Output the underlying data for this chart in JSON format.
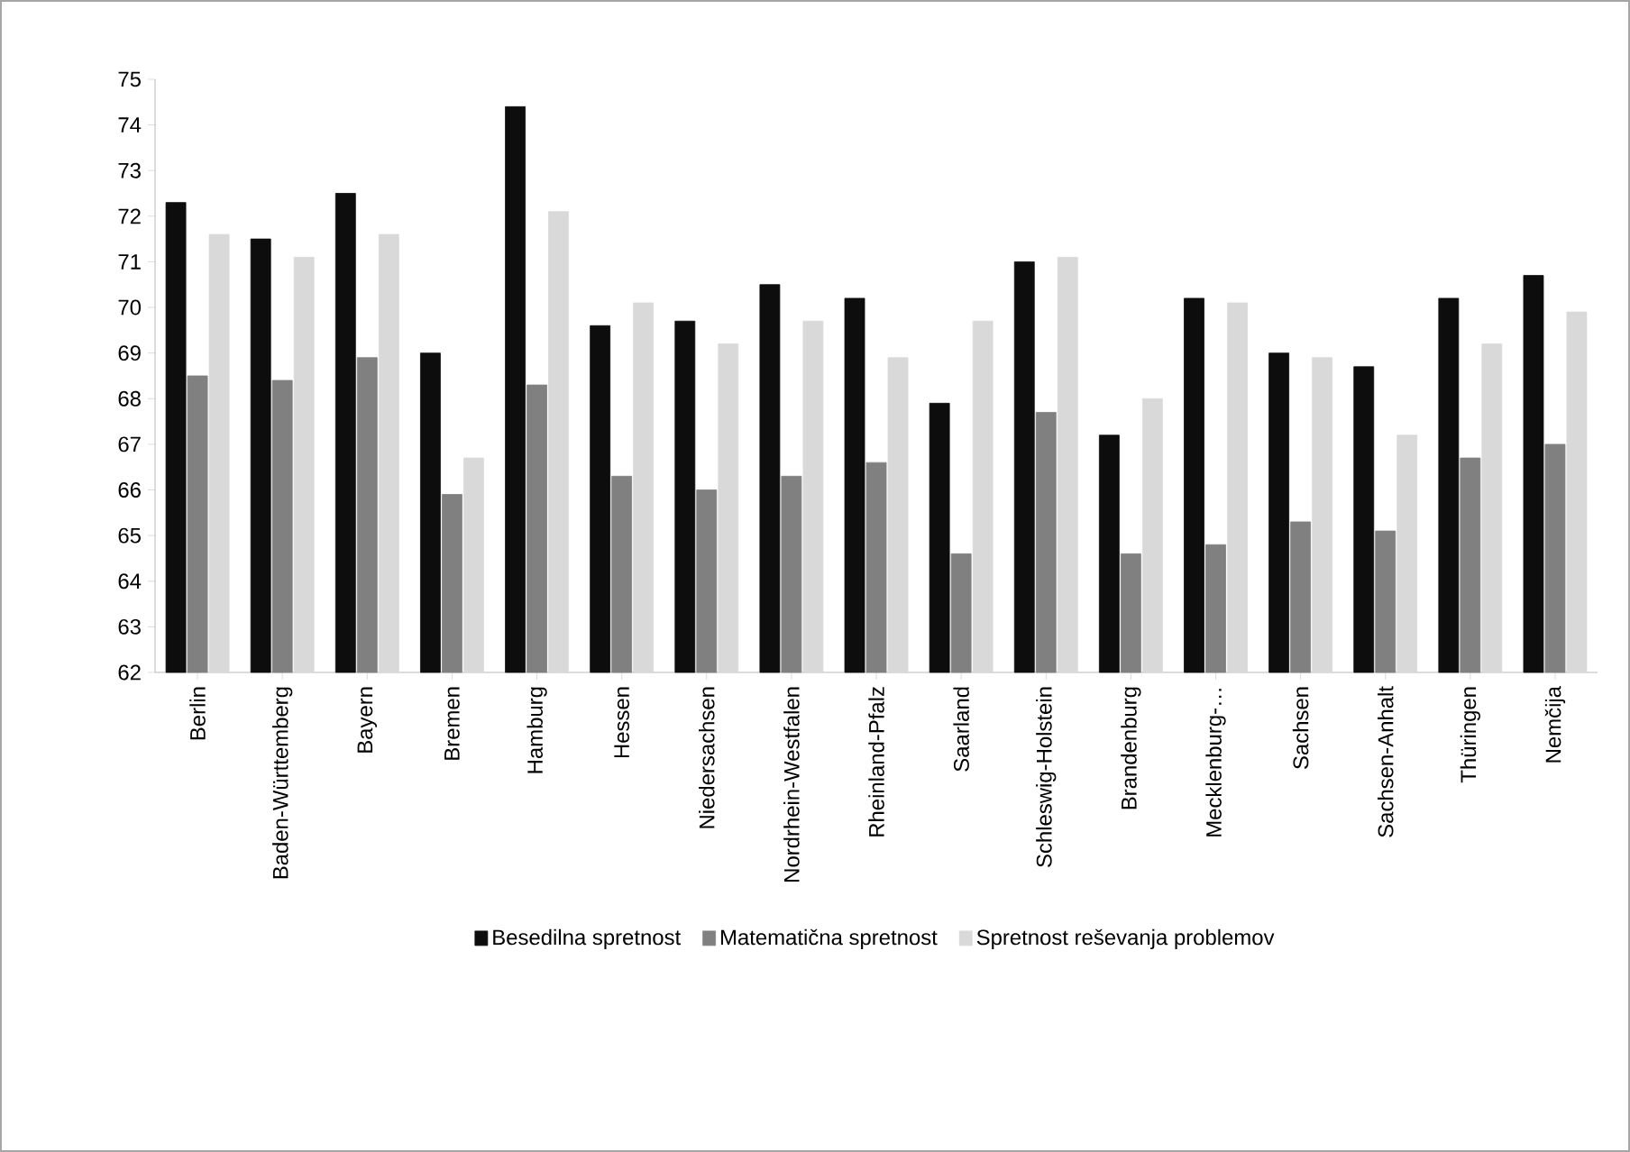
{
  "chart_data": {
    "type": "bar",
    "categories": [
      "Berlin",
      "Baden-Württemberg",
      "Bayern",
      "Bremen",
      "Hamburg",
      "Hessen",
      "Niedersachsen",
      "Nordrhein-Westfalen",
      "Rheinland-Pfalz",
      "Saarland",
      "Schleswig-Holstein",
      "Brandenburg",
      "Mecklenburg-…",
      "Sachsen",
      "Sachsen-Anhalt",
      "Thüringen",
      "Nemčija"
    ],
    "series": [
      {
        "name": "Besedilna spretnost",
        "color": "#0d0d0d",
        "values": [
          72.3,
          71.5,
          72.5,
          69.0,
          74.4,
          69.6,
          69.7,
          70.5,
          70.2,
          67.9,
          71.0,
          67.2,
          70.2,
          69.0,
          68.7,
          70.2,
          70.7
        ]
      },
      {
        "name": "Matematična spretnost",
        "color": "#808080",
        "values": [
          68.5,
          68.4,
          68.9,
          65.9,
          68.3,
          66.3,
          66.0,
          66.3,
          66.6,
          64.6,
          67.7,
          64.6,
          64.8,
          65.3,
          65.1,
          66.7,
          67.0
        ]
      },
      {
        "name": "Spretnost reševanja problemov",
        "color": "#d9d9d9",
        "values": [
          71.6,
          71.1,
          71.6,
          66.7,
          72.1,
          70.1,
          69.2,
          69.7,
          68.9,
          69.7,
          71.1,
          68.0,
          70.1,
          68.9,
          67.2,
          69.2,
          69.9
        ]
      }
    ],
    "ylim": [
      62,
      75
    ],
    "yticks": [
      62,
      63,
      64,
      65,
      66,
      67,
      68,
      69,
      70,
      71,
      72,
      73,
      74,
      75
    ],
    "grid": false,
    "legend": "bottom"
  }
}
